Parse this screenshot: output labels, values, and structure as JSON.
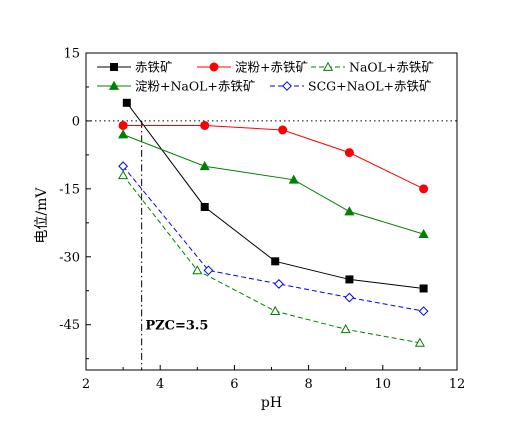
{
  "chart_data": {
    "type": "line",
    "xlabel": "pH",
    "ylabel": "电位/mV",
    "xlim": [
      2,
      12
    ],
    "ylim": [
      -55,
      15
    ],
    "xticks": [
      2,
      4,
      6,
      8,
      10,
      12
    ],
    "yticks": [
      15,
      0,
      -15,
      -30,
      -45
    ],
    "grid": false,
    "legend_position": "top",
    "reference_lines": [
      {
        "axis": "y",
        "value": 0,
        "style": "dotted"
      },
      {
        "axis": "x",
        "value": 3.5,
        "style": "dash-dot"
      }
    ],
    "annotations": [
      {
        "text": "PZC=3.5",
        "x": 3.6,
        "y": -45
      }
    ],
    "series": [
      {
        "name": "赤铁矿",
        "color": "#000000",
        "marker": "square-filled",
        "line": "solid",
        "x": [
          3.1,
          5.2,
          7.1,
          9.1,
          11.1
        ],
        "y": [
          4,
          -19,
          -31,
          -35,
          -37
        ]
      },
      {
        "name": "淀粉+赤铁矿",
        "color": "#ff0000",
        "marker": "circle-filled",
        "line": "solid",
        "x": [
          3.0,
          5.2,
          7.3,
          9.1,
          11.1
        ],
        "y": [
          -1,
          -1,
          -2,
          -7,
          -15
        ]
      },
      {
        "name": "NaOL+赤铁矿",
        "color": "#008000",
        "marker": "triangle-open",
        "line": "dashed",
        "x": [
          3.0,
          5.0,
          7.1,
          9.0,
          11.0
        ],
        "y": [
          -12,
          -33,
          -42,
          -46,
          -49
        ]
      },
      {
        "name": "淀粉+NaOL+赤铁矿",
        "color": "#008000",
        "marker": "triangle-filled",
        "line": "solid",
        "x": [
          3.0,
          5.2,
          7.6,
          9.1,
          11.1
        ],
        "y": [
          -3,
          -10,
          -13,
          -20,
          -25
        ]
      },
      {
        "name": "SCG+NaOL+赤铁矿",
        "color": "#0000ff",
        "marker": "diamond-open",
        "line": "dashed",
        "x": [
          3.0,
          5.3,
          7.2,
          9.1,
          11.1
        ],
        "y": [
          -10,
          -33,
          -36,
          -39,
          -42
        ]
      }
    ]
  }
}
